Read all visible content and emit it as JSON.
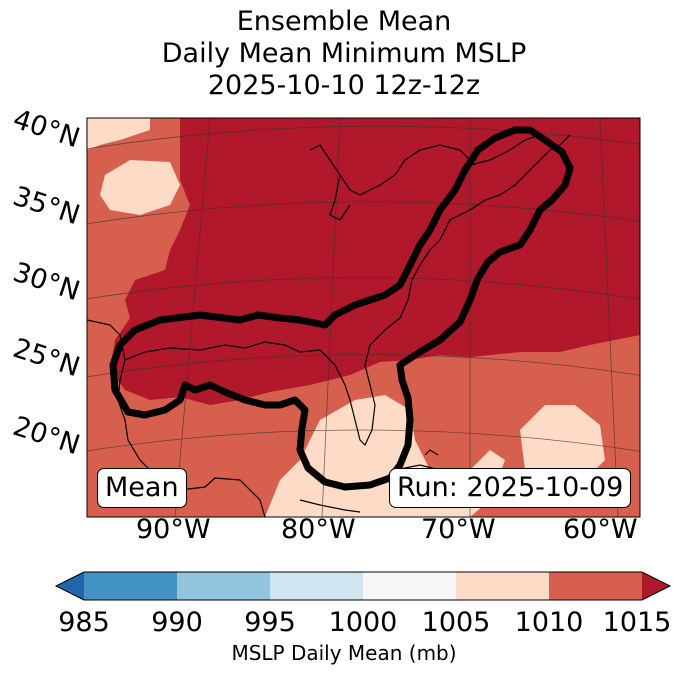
{
  "title": {
    "line1": "Ensemble Mean",
    "line2": "Daily Mean Minimum MSLP",
    "line3": "2025-10-10 12z-12z"
  },
  "map": {
    "lat_labels": [
      "40°N",
      "35°N",
      "30°N",
      "25°N",
      "20°N"
    ],
    "lon_labels": [
      "90°W",
      "80°W",
      "70°W",
      "60°W"
    ],
    "mean_label": "Mean",
    "run_label": "Run: 2025-10-09"
  },
  "colorbar": {
    "ticks": [
      "985",
      "990",
      "995",
      "1000",
      "1005",
      "1010",
      "1015"
    ],
    "label": "MSLP Daily Mean (mb)",
    "colors": [
      "#2166ac",
      "#4393c3",
      "#92c5de",
      "#d1e5f0",
      "#f7f7f7",
      "#fddbc7",
      "#d6604d",
      "#b2182b"
    ]
  },
  "legend_colors": {
    "level_1010_1015": "#d6604d",
    "level_over_1015": "#b2182b",
    "level_1005_1010": "#fddbc7",
    "contour": "#000000"
  }
}
